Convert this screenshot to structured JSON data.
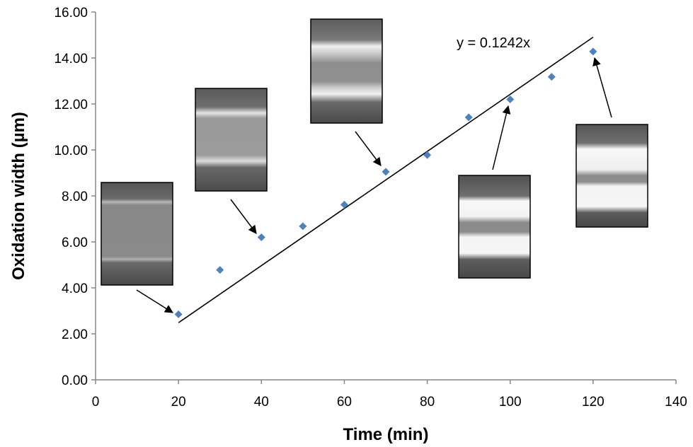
{
  "chart_data": {
    "type": "scatter",
    "xlabel": "Time (min)",
    "ylabel": "Oxidation width (µm)",
    "xlim": [
      0,
      140
    ],
    "ylim": [
      0,
      16
    ],
    "xticks": [
      "0",
      "20",
      "40",
      "60",
      "80",
      "100",
      "120",
      "140"
    ],
    "yticks": [
      "0.00",
      "2.00",
      "4.00",
      "6.00",
      "8.00",
      "10.00",
      "12.00",
      "14.00",
      "16.00"
    ],
    "grid": false,
    "series": [
      {
        "color": "#4f81bd",
        "marker": "diamond",
        "x": [
          20,
          30,
          40,
          50,
          60,
          70,
          80,
          90,
          100,
          110,
          120
        ],
        "y": [
          2.85,
          4.78,
          6.2,
          6.68,
          7.62,
          9.05,
          9.78,
          11.42,
          12.2,
          13.18,
          14.28
        ]
      }
    ],
    "trendline": {
      "slope": 0.1242,
      "x_range": [
        20,
        120
      ],
      "color": "#000000"
    },
    "annotations": [
      {
        "text": "y = 0.1242x"
      }
    ],
    "inset_images": [
      {
        "name": "micrograph-20min",
        "points_to": [
          20,
          2.85
        ]
      },
      {
        "name": "micrograph-40min",
        "points_to": [
          40,
          6.2
        ]
      },
      {
        "name": "micrograph-70min",
        "points_to": [
          70,
          9.05
        ]
      },
      {
        "name": "micrograph-100min",
        "points_to": [
          100,
          12.2
        ]
      },
      {
        "name": "micrograph-120min",
        "points_to": [
          120,
          14.28
        ]
      }
    ]
  }
}
